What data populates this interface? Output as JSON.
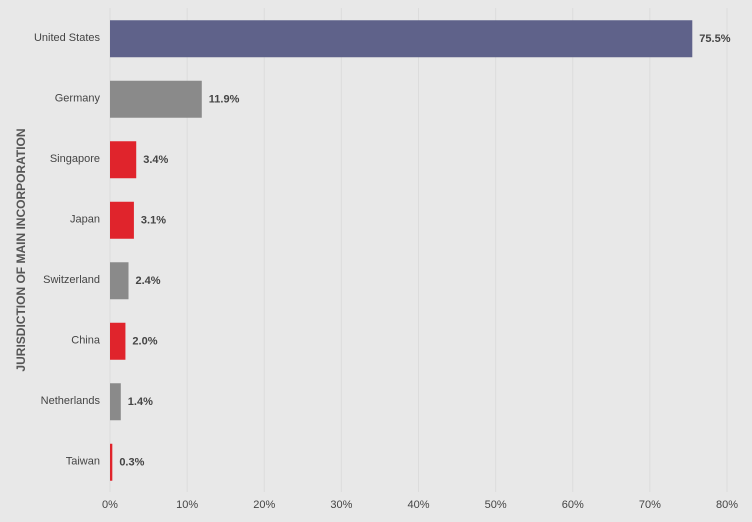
{
  "chart_data": {
    "type": "hbar",
    "ylabel": "JURISDICTION OF MAIN INCORPORATION",
    "categories": [
      "United States",
      "Germany",
      "Singapore",
      "Japan",
      "Switzerland",
      "China",
      "Netherlands",
      "Taiwan"
    ],
    "values": [
      75.5,
      11.9,
      3.4,
      3.1,
      2.4,
      2.0,
      1.4,
      0.3
    ],
    "value_labels": [
      "75.5%",
      "11.9%",
      "3.4%",
      "3.1%",
      "2.4%",
      "2.0%",
      "1.4%",
      "0.3%"
    ],
    "colors": [
      "#5f628a",
      "#8a8a8a",
      "#e0242c",
      "#e0242c",
      "#8a8a8a",
      "#e0242c",
      "#8a8a8a",
      "#e0242c"
    ],
    "xlim": [
      0,
      80
    ],
    "xticks": [
      {
        "value": 0,
        "label": "0%"
      },
      {
        "value": 10,
        "label": "10%"
      },
      {
        "value": 20,
        "label": "20%"
      },
      {
        "value": 30,
        "label": "30%"
      },
      {
        "value": 40,
        "label": "40%"
      },
      {
        "value": 50,
        "label": "50%"
      },
      {
        "value": 60,
        "label": "60%"
      },
      {
        "value": 70,
        "label": "70%"
      },
      {
        "value": 80,
        "label": "80%"
      }
    ],
    "grid": true
  }
}
